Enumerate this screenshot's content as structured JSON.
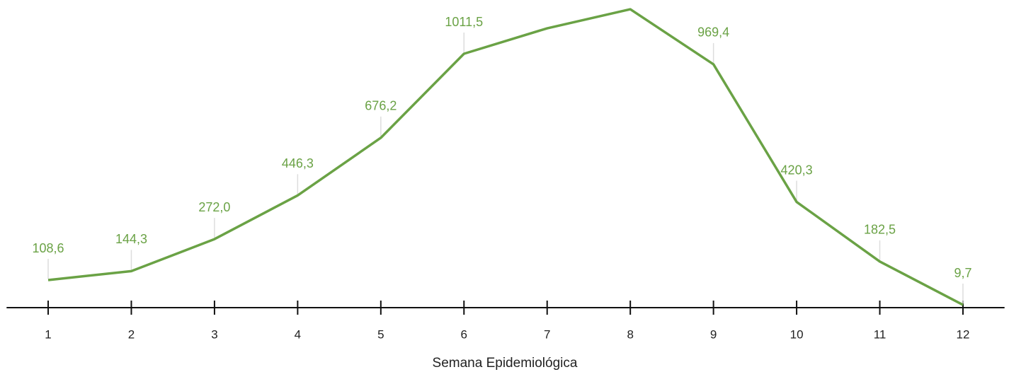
{
  "chart_data": {
    "type": "line",
    "x_label": "Semana Epidemiológica",
    "x": [
      1,
      2,
      3,
      4,
      5,
      6,
      7,
      8,
      9,
      10,
      11,
      12
    ],
    "xlim": [
      0.5,
      12.5
    ],
    "xticks": [
      1,
      2,
      3,
      4,
      5,
      6,
      7,
      8,
      9,
      10,
      11,
      12
    ],
    "ylim": [
      0,
      1200
    ],
    "series": [
      {
        "color": "#6aa245",
        "values": [
          108.6,
          144.3,
          272.0,
          446.3,
          676.2,
          1011.5,
          1113,
          1189,
          969.4,
          420.3,
          182.5,
          9.7
        ],
        "value_labels": [
          "108,6",
          "144,3",
          "272,0",
          "446,3",
          "676,2",
          "1011,5",
          null,
          null,
          "969,4",
          "420,3",
          "182,5",
          "9,7"
        ]
      }
    ]
  }
}
